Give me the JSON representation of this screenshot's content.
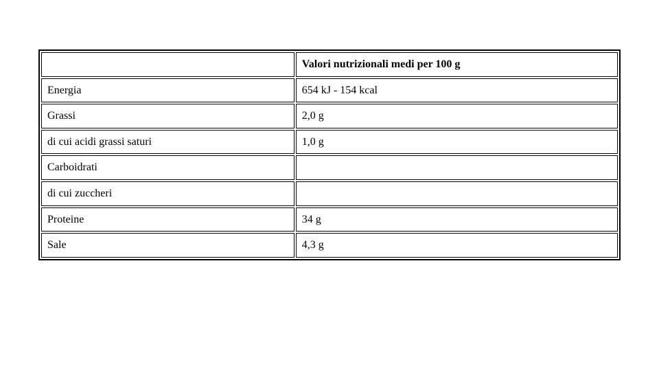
{
  "table": {
    "type": "table",
    "border_color": "#000000",
    "background_color": "#ffffff",
    "font_family": "Times New Roman",
    "header_font_weight": "bold",
    "body_font_weight": "normal",
    "font_size_pt": 12,
    "columns": [
      {
        "header": "",
        "width_pct": 44,
        "align": "left"
      },
      {
        "header": "Valori nutrizionali medi per 100 g",
        "width_pct": 56,
        "align": "left"
      }
    ],
    "rows": [
      {
        "label": "Energia",
        "value": "654 kJ - 154 kcal"
      },
      {
        "label": "Grassi",
        "value": "2,0 g"
      },
      {
        "label": "di cui acidi grassi saturi",
        "value": "1,0 g"
      },
      {
        "label": "Carboidrati",
        "value": ""
      },
      {
        "label": "di cui zuccheri",
        "value": ""
      },
      {
        "label": "Proteine",
        "value": "34 g"
      },
      {
        "label": "Sale",
        "value": "4,3 g"
      }
    ]
  }
}
